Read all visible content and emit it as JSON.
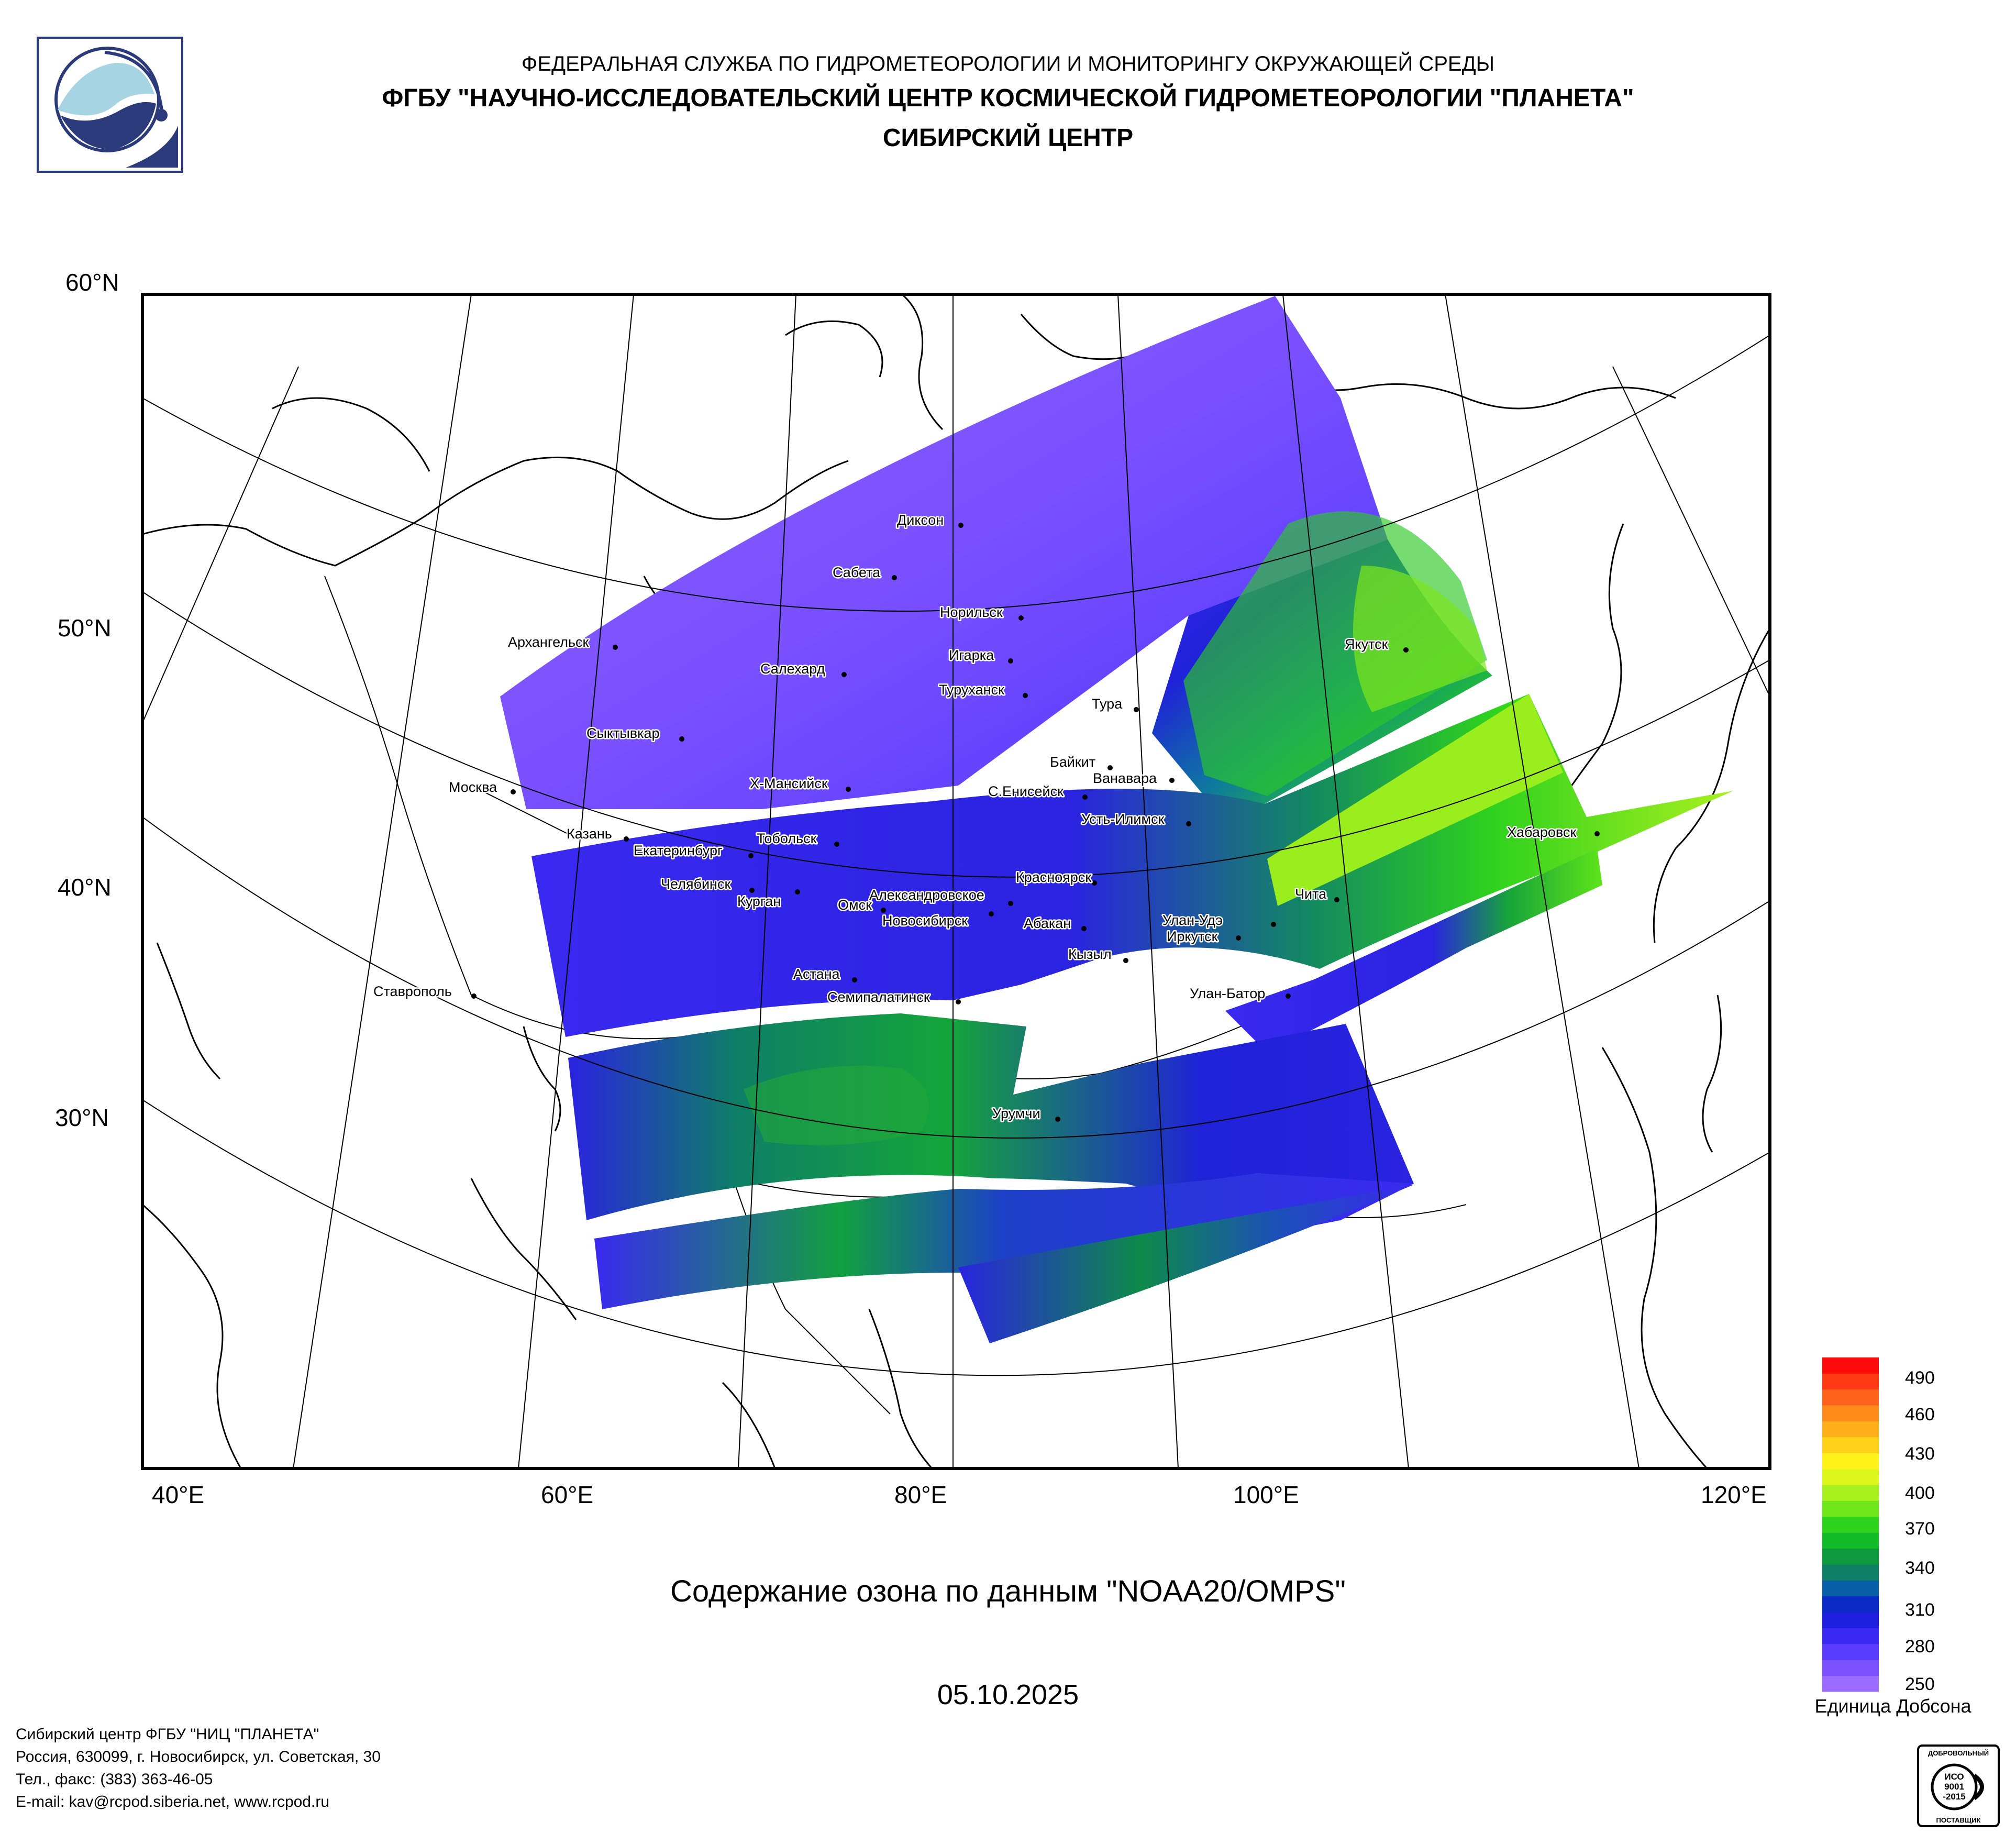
{
  "header": {
    "line1": "ФЕДЕРАЛЬНАЯ СЛУЖБА ПО ГИДРОМЕТЕОРОЛОГИИ И МОНИТОРИНГУ ОКРУЖАЮЩЕЙ СРЕДЫ",
    "line2": "ФГБУ \"НАУЧНО-ИССЛЕДОВАТЕЛЬСКИЙ ЦЕНТР КОСМИЧЕСКОЙ ГИДРОМЕТЕОРОЛОГИИ \"ПЛАНЕТА\"",
    "line3": "СИБИРСКИЙ ЦЕНТР"
  },
  "map": {
    "lat_labels": [
      "60°N",
      "50°N",
      "40°N",
      "30°N"
    ],
    "lon_labels": [
      "40°E",
      "60°E",
      "80°E",
      "100°E",
      "120°E"
    ],
    "cities": [
      "Диксон",
      "Сабета",
      "Норильск",
      "Игарка",
      "Архангельск",
      "Салехард",
      "Туруханск",
      "Якутск",
      "Тура",
      "Сыктывкар",
      "Байкит",
      "Ванавара",
      "Москва",
      "Х-Мансийск",
      "С.Енисейск",
      "Усть-Илимск",
      "Хабаровск",
      "Казань",
      "Тобольск",
      "Екатеринбург",
      "Красноярск",
      "Челябинск",
      "Александровское",
      "Курган",
      "Омск",
      "Чита",
      "Новосибирск",
      "Улан-Удэ",
      "Абакан",
      "Иркутск",
      "Кызыл",
      "Астана",
      "Ставрополь",
      "Семипалатинск",
      "Улан-Батор",
      "Урумчи"
    ]
  },
  "colorbar": {
    "tick_labels": [
      "490",
      "460",
      "430",
      "400",
      "370",
      "340",
      "310",
      "280",
      "250"
    ],
    "units": "Единица Добсона",
    "colors": [
      "#9b6bff",
      "#7c52ff",
      "#5a3cff",
      "#3a29f0",
      "#1f1fe0",
      "#0a2bc6",
      "#0b5fa8",
      "#0f7f66",
      "#0e9a3c",
      "#12bb2a",
      "#2ed31e",
      "#6ee61a",
      "#a8f01e",
      "#dcf51a",
      "#fff21a",
      "#ffd21a",
      "#ffb01a",
      "#ff8c1a",
      "#ff621a",
      "#ff3a14",
      "#ff0a0a"
    ]
  },
  "caption": "Содержание озона по данным \"NOAA20/OMPS\"",
  "date": "05.10.2025",
  "footer": {
    "line1": "Сибирский центр ФГБУ \"НИЦ \"ПЛАНЕТА\"",
    "line2": "Россия, 630099, г. Новосибирск, ул. Советская, 30",
    "line3": "Тел., факс: (383) 363-46-05",
    "line4": "E-mail: kav@rcpod.siberia.net, www.rcpod.ru"
  },
  "certificate": {
    "top": "ДОБРОВОЛЬНЫЙ",
    "line1": "ИСО",
    "line2": "9001",
    "line3": "-2015",
    "bottom": "ПОСТАВЩИК"
  }
}
